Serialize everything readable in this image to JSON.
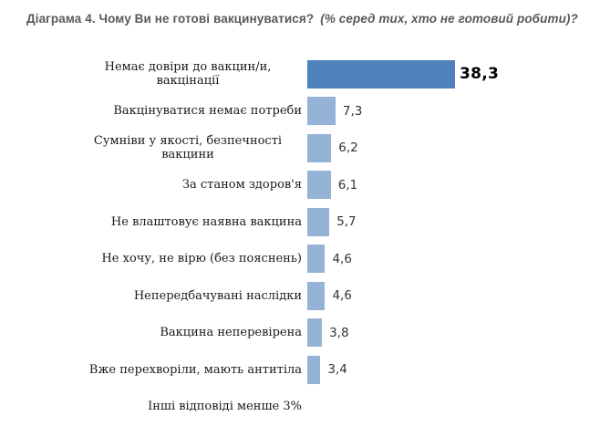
{
  "title": {
    "main": "Діаграма 4. Чому Ви не готові вакцинуватися?",
    "note": "(% серед тих, хто не готовий робити)?"
  },
  "chart_data": {
    "type": "bar",
    "orientation": "horizontal",
    "title": "Діаграма 4. Чому Ви не готові вакцинуватися? (% серед тих, хто не готовий робити)?",
    "categories": [
      "Немає довіри до вакцин/и, вакцінації",
      "Вакцінуватися немає потреби",
      "Сумніви у якості, безпечності вакцини",
      "За станом здоров'я",
      "Не влаштовує наявна вакцина",
      "Не хочу, не вірю (без пояснень)",
      "Непередбачувані наслідки",
      "Вакцина неперевірена",
      "Вже перехворіли, мають антитіла",
      "Інші відповіді менше 3%"
    ],
    "values": [
      38.3,
      7.3,
      6.2,
      6.1,
      5.7,
      4.6,
      4.6,
      3.8,
      3.4,
      null
    ],
    "value_labels": [
      "38,3",
      "7,3",
      "6,2",
      "6,1",
      "5,7",
      "4,6",
      "4,6",
      "3,8",
      "3,4",
      ""
    ],
    "xlim": [
      0,
      40
    ],
    "grid": false,
    "legend": false,
    "axis_lines": false,
    "colors": {
      "highlight_bar": "#4F81BD",
      "bar": "#95B3D7",
      "value_text": "#333333",
      "highlight_value_text": "#000000",
      "title_text": "#595959",
      "label_text": "#1a1a1a"
    }
  }
}
